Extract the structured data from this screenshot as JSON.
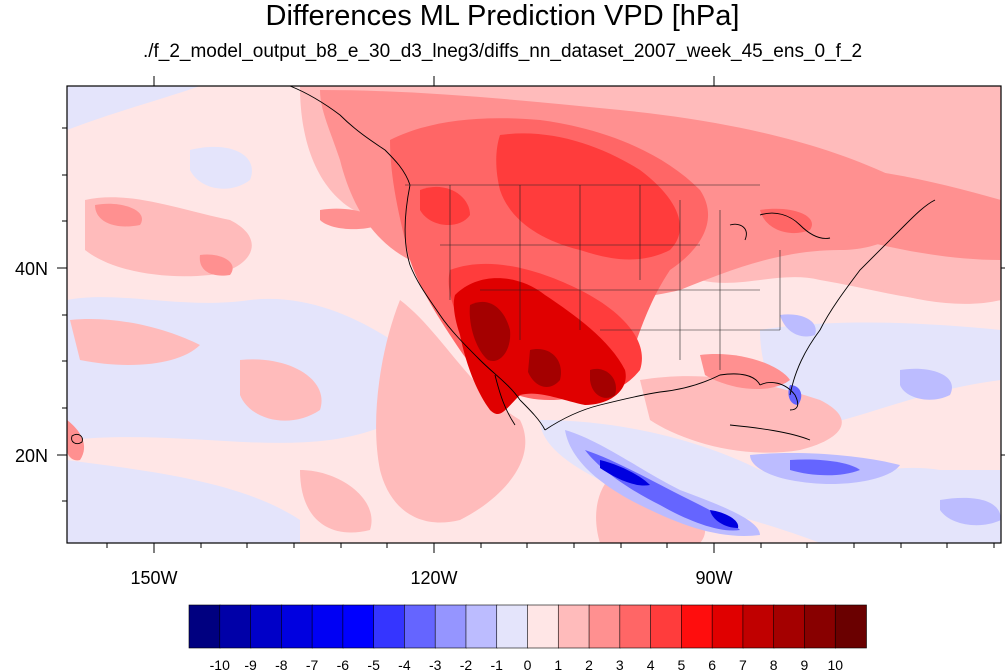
{
  "title": "Differences ML Prediction VPD [hPa]",
  "subtitle": "./f_2_model_output_b8_e_30_d3_lneg3/diffs_nn_dataset_2007_week_45_ens_0_f_2",
  "axes": {
    "lon_labels": [
      "150W",
      "120W",
      "90W"
    ],
    "lat_labels": [
      "40N",
      "20N"
    ],
    "lon_range": [
      -159,
      -61
    ],
    "lat_range": [
      11,
      59
    ]
  },
  "colorbar": {
    "labels": [
      "-10",
      "-9",
      "-8",
      "-7",
      "-6",
      "-5",
      "-4",
      "-3",
      "-2",
      "-1",
      "0",
      "1",
      "2",
      "3",
      "4",
      "5",
      "6",
      "7",
      "8",
      "9",
      "10"
    ],
    "colors": [
      "#000080",
      "#0000a8",
      "#0000c8",
      "#0000e0",
      "#0000f4",
      "#0000ff",
      "#3535ff",
      "#6565ff",
      "#9595ff",
      "#bcbcff",
      "#e4e4fb",
      "#ffe6e6",
      "#ffbbbb",
      "#ff9090",
      "#ff6666",
      "#ff3c3c",
      "#ff0d0d",
      "#e00000",
      "#c00000",
      "#a40000",
      "#880000",
      "#6a0000"
    ]
  },
  "map_colors": {
    "background": "#ffe6e6",
    "neutral_blue": "#e4e4fb",
    "light_red": "#ffbbbb",
    "mid_red": "#ff9090",
    "red": "#ff6666",
    "strong_red": "#ff3c3c",
    "deep_red": "#e00000",
    "darkest_red": "#a40000",
    "blue_light": "#bcbcff",
    "blue_mid": "#6565ff",
    "blue_strong": "#0000e0"
  }
}
